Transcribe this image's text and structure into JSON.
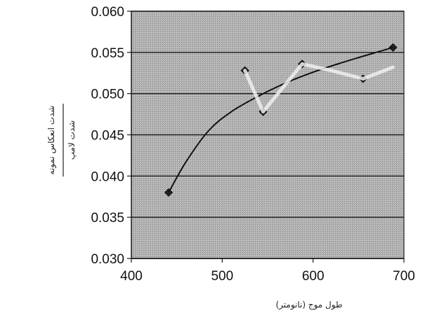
{
  "chart_data": {
    "type": "scatter",
    "title": "",
    "xlabel": "طول موج (نانومتر)",
    "ylabel_numerator": "شدت انعکاس نمونه",
    "ylabel_denominator": "شدت لامپ",
    "xlim": [
      400,
      700
    ],
    "ylim": [
      0.03,
      0.06
    ],
    "x_ticks": [
      400,
      500,
      600,
      700
    ],
    "x_tick_labels": [
      "400",
      "500",
      "600",
      "700"
    ],
    "y_ticks": [
      0.03,
      0.035,
      0.04,
      0.045,
      0.05,
      0.055,
      0.06
    ],
    "y_tick_labels": [
      "0.030",
      "0.035",
      "0.040",
      "0.045",
      "0.050",
      "0.055",
      "0.060"
    ],
    "grid": true,
    "plot_background": "#b8b8b8",
    "series": [
      {
        "kind": "markers",
        "color": "#222222",
        "x": [
          441,
          525,
          545,
          588,
          655,
          688
        ],
        "y": [
          0.038,
          0.0528,
          0.0478,
          0.0536,
          0.0518,
          0.0556
        ]
      },
      {
        "kind": "fit-curve",
        "color": "#111111",
        "x": [
          441,
          460,
          485,
          510,
          540,
          570,
          600,
          630,
          660,
          688
        ],
        "y": [
          0.038,
          0.0417,
          0.0455,
          0.0478,
          0.0497,
          0.0513,
          0.0526,
          0.0537,
          0.0547,
          0.0556
        ]
      },
      {
        "kind": "light-line",
        "color": "#eeeeee",
        "x": [
          525,
          545,
          588,
          620,
          655,
          688
        ],
        "y": [
          0.0528,
          0.0478,
          0.0536,
          0.0528,
          0.0518,
          0.0532
        ]
      }
    ]
  }
}
